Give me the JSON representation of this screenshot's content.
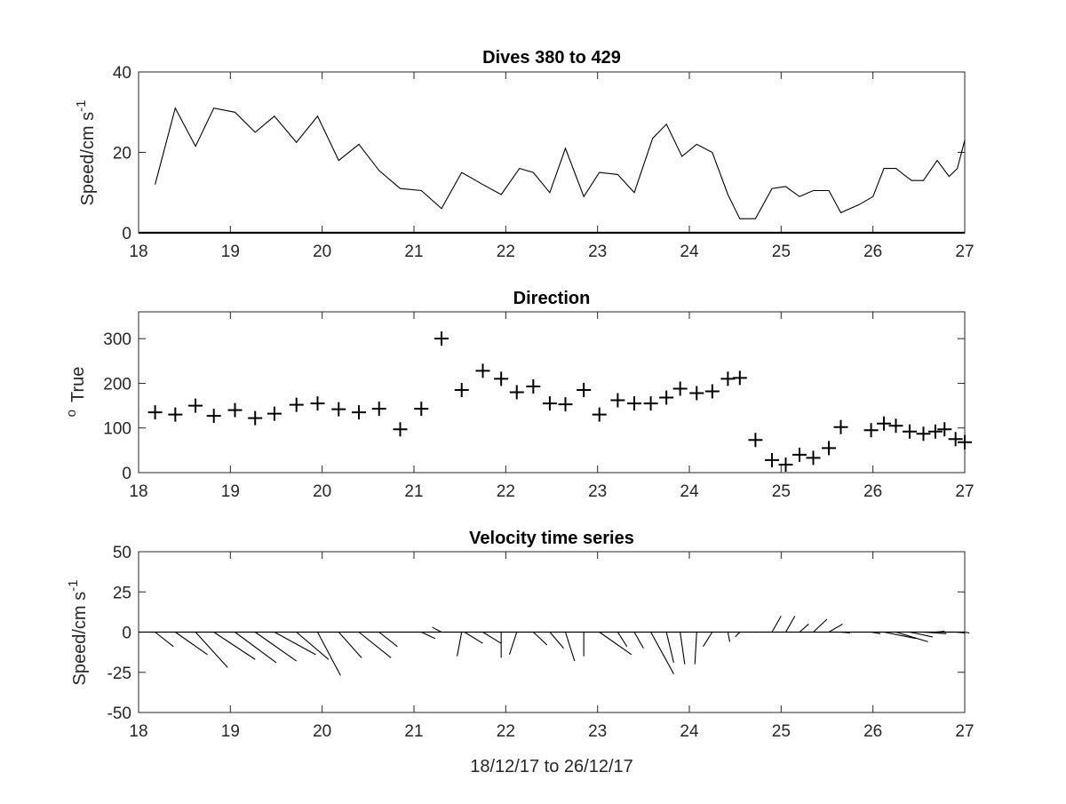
{
  "chart_data": [
    {
      "type": "line",
      "title": "Dives 380 to 429",
      "xlabel": "",
      "ylabel": "Speed/cm s",
      "ylabel_sup": "-1",
      "xlim": [
        18,
        27
      ],
      "ylim": [
        0,
        40
      ],
      "xticks": [
        18,
        19,
        20,
        21,
        22,
        23,
        24,
        25,
        26,
        27
      ],
      "yticks": [
        0,
        20,
        40
      ],
      "grid": false,
      "series": [
        {
          "x": [
            18.18,
            18.4,
            18.62,
            18.82,
            19.05,
            19.27,
            19.48,
            19.72,
            19.95,
            20.18,
            20.4,
            20.62,
            20.85,
            21.08,
            21.3,
            21.52,
            21.75,
            21.95,
            22.15,
            22.3,
            22.48,
            22.65,
            22.85,
            23.02,
            23.22,
            23.4,
            23.6,
            23.75,
            23.92,
            24.08,
            24.25,
            24.42,
            24.55,
            24.72,
            24.9,
            25.05,
            25.2,
            25.35,
            25.52,
            25.65,
            25.85,
            26.0,
            26.12,
            26.25,
            26.42,
            26.55,
            26.7,
            26.83,
            26.92,
            27.0
          ],
          "y": [
            12,
            31,
            21.5,
            31,
            30,
            25,
            29,
            22.5,
            29,
            18,
            22,
            15.5,
            11,
            10.5,
            6,
            15,
            12,
            9.5,
            16,
            15,
            10,
            21,
            9,
            15,
            14.5,
            10,
            23.5,
            27,
            19,
            22,
            20,
            9.5,
            3.5,
            3.5,
            11,
            11.5,
            9,
            10.5,
            10.5,
            5,
            7,
            9,
            16,
            16,
            13,
            13,
            18,
            14,
            16,
            23
          ]
        }
      ]
    },
    {
      "type": "scatter",
      "title": "Direction",
      "xlabel": "",
      "ylabel": "True",
      "ylabel_sup": "o",
      "xlim": [
        18,
        27
      ],
      "ylim": [
        0,
        360
      ],
      "xticks": [
        18,
        19,
        20,
        21,
        22,
        23,
        24,
        25,
        26,
        27
      ],
      "yticks": [
        0,
        100,
        200,
        300
      ],
      "grid": false,
      "series": [
        {
          "x": [
            18.18,
            18.4,
            18.62,
            18.82,
            19.05,
            19.27,
            19.48,
            19.72,
            19.95,
            20.18,
            20.4,
            20.62,
            20.85,
            21.08,
            21.3,
            21.52,
            21.75,
            21.95,
            22.12,
            22.3,
            22.48,
            22.65,
            22.85,
            23.02,
            23.22,
            23.4,
            23.58,
            23.75,
            23.9,
            24.08,
            24.25,
            24.42,
            24.55,
            24.72,
            24.9,
            25.05,
            25.2,
            25.35,
            25.52,
            25.65,
            25.98,
            26.12,
            26.25,
            26.4,
            26.55,
            26.68,
            26.78,
            26.9,
            27.0
          ],
          "y": [
            135,
            130,
            150,
            127,
            140,
            122,
            132,
            152,
            155,
            142,
            135,
            143,
            97,
            143,
            300,
            185,
            228,
            210,
            180,
            193,
            155,
            153,
            185,
            130,
            162,
            155,
            155,
            168,
            188,
            178,
            182,
            210,
            212,
            73,
            28,
            18,
            40,
            33,
            55,
            102,
            95,
            110,
            105,
            92,
            87,
            92,
            97,
            75,
            68
          ]
        }
      ]
    },
    {
      "type": "quiver",
      "title": "Velocity time series",
      "xlabel": "18/12/17 to 26/12/17",
      "ylabel": "Speed/cm s",
      "ylabel_sup": "-1",
      "xlim": [
        18,
        27
      ],
      "ylim": [
        -50,
        50
      ],
      "xticks": [
        18,
        19,
        20,
        21,
        22,
        23,
        24,
        25,
        26,
        27
      ],
      "yticks": [
        -50,
        -25,
        0,
        25,
        50
      ],
      "grid": false,
      "vectors": [
        {
          "x": 18.18,
          "dx": 0.2,
          "dy": -9
        },
        {
          "x": 18.4,
          "dx": 0.35,
          "dy": -14
        },
        {
          "x": 18.62,
          "dx": 0.35,
          "dy": -22
        },
        {
          "x": 18.82,
          "dx": 0.45,
          "dy": -17
        },
        {
          "x": 19.05,
          "dx": 0.45,
          "dy": -19
        },
        {
          "x": 19.27,
          "dx": 0.45,
          "dy": -18
        },
        {
          "x": 19.48,
          "dx": 0.45,
          "dy": -14
        },
        {
          "x": 19.72,
          "dx": 0.35,
          "dy": -17
        },
        {
          "x": 19.95,
          "dx": 0.25,
          "dy": -27
        },
        {
          "x": 20.18,
          "dx": 0.25,
          "dy": -16
        },
        {
          "x": 20.4,
          "dx": 0.35,
          "dy": -16
        },
        {
          "x": 20.62,
          "dx": 0.2,
          "dy": -9
        },
        {
          "x": 20.85,
          "dx": 0.2,
          "dy": 0
        },
        {
          "x": 21.08,
          "dx": 0.15,
          "dy": -4
        },
        {
          "x": 21.3,
          "dx": -0.1,
          "dy": 3
        },
        {
          "x": 21.52,
          "dx": -0.05,
          "dy": -15
        },
        {
          "x": 21.55,
          "dx": 0.2,
          "dy": -7
        },
        {
          "x": 21.75,
          "dx": 0.2,
          "dy": -7
        },
        {
          "x": 21.95,
          "dx": 0.0,
          "dy": -16
        },
        {
          "x": 22.12,
          "dx": -0.08,
          "dy": -14
        },
        {
          "x": 22.3,
          "dx": 0.15,
          "dy": -8
        },
        {
          "x": 22.48,
          "dx": 0.15,
          "dy": -10
        },
        {
          "x": 22.65,
          "dx": 0.1,
          "dy": -18
        },
        {
          "x": 22.85,
          "dx": 0.0,
          "dy": -15
        },
        {
          "x": 23.02,
          "dx": 0.35,
          "dy": -14
        },
        {
          "x": 23.22,
          "dx": 0.1,
          "dy": -9
        },
        {
          "x": 23.4,
          "dx": 0.1,
          "dy": -10
        },
        {
          "x": 23.58,
          "dx": 0.25,
          "dy": -26
        },
        {
          "x": 23.75,
          "dx": 0.08,
          "dy": -19
        },
        {
          "x": 23.9,
          "dx": 0.05,
          "dy": -20
        },
        {
          "x": 24.08,
          "dx": -0.02,
          "dy": -20
        },
        {
          "x": 24.25,
          "dx": -0.1,
          "dy": -9
        },
        {
          "x": 24.42,
          "dx": 0.02,
          "dy": -6
        },
        {
          "x": 24.55,
          "dx": -0.05,
          "dy": -3
        },
        {
          "x": 24.72,
          "dx": 0.02,
          "dy": 0
        },
        {
          "x": 24.9,
          "dx": 0.1,
          "dy": 10
        },
        {
          "x": 25.05,
          "dx": 0.1,
          "dy": 10
        },
        {
          "x": 25.2,
          "dx": 0.1,
          "dy": 5
        },
        {
          "x": 25.35,
          "dx": 0.15,
          "dy": 8
        },
        {
          "x": 25.52,
          "dx": 0.15,
          "dy": 5
        },
        {
          "x": 25.65,
          "dx": 0.1,
          "dy": -0.5
        },
        {
          "x": 25.98,
          "dx": 0.1,
          "dy": -1
        },
        {
          "x": 26.12,
          "dx": 0.35,
          "dy": -4
        },
        {
          "x": 26.25,
          "dx": 0.35,
          "dy": -6
        },
        {
          "x": 26.4,
          "dx": 0.25,
          "dy": -3
        },
        {
          "x": 26.55,
          "dx": 0.25,
          "dy": -1
        },
        {
          "x": 26.68,
          "dx": 0.1,
          "dy": 0.5
        },
        {
          "x": 26.78,
          "dx": 0.12,
          "dy": 0
        },
        {
          "x": 26.9,
          "dx": 0.1,
          "dy": -0.5
        },
        {
          "x": 27.0,
          "dx": 0.05,
          "dy": -0.5
        }
      ]
    }
  ]
}
